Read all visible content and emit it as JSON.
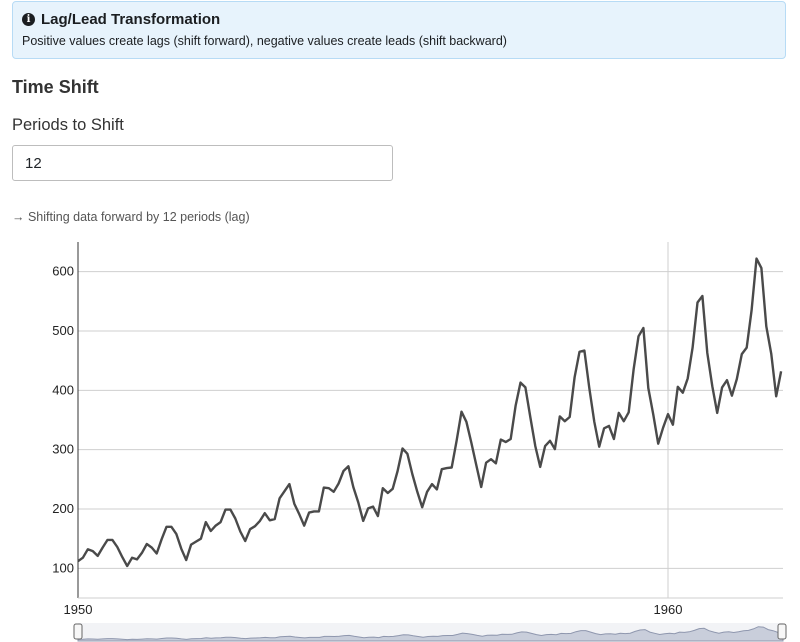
{
  "alert": {
    "icon": "info-icon",
    "title": "Lag/Lead Transformation",
    "text": "Positive values create lags (shift forward), negative values create leads (shift backward)"
  },
  "section_title": "Time Shift",
  "shift": {
    "label": "Periods to Shift",
    "value": "12"
  },
  "hint": "→ Shifting data forward by 12 periods (lag)",
  "chart_data": {
    "type": "line",
    "title": "",
    "xlabel": "",
    "ylabel": "",
    "x_start": "1950-01",
    "frequency": "monthly",
    "x_tick_labels": [
      "1950",
      "1960"
    ],
    "y_ticks": [
      100,
      200,
      300,
      400,
      500,
      600
    ],
    "ylim": [
      50,
      650
    ],
    "grid": true,
    "navigator": true,
    "series": [
      {
        "name": "",
        "color": "#4a4a4a",
        "values": [
          112,
          118,
          132,
          129,
          121,
          135,
          148,
          148,
          136,
          119,
          104,
          118,
          115,
          126,
          141,
          135,
          125,
          149,
          170,
          170,
          158,
          133,
          114,
          140,
          145,
          150,
          178,
          163,
          172,
          178,
          199,
          199,
          184,
          162,
          146,
          166,
          171,
          180,
          193,
          181,
          183,
          218,
          230,
          242,
          209,
          191,
          172,
          194,
          196,
          196,
          236,
          235,
          229,
          243,
          264,
          272,
          237,
          211,
          180,
          201,
          204,
          188,
          235,
          227,
          234,
          264,
          302,
          293,
          259,
          229,
          203,
          229,
          242,
          233,
          267,
          269,
          270,
          315,
          364,
          347,
          312,
          274,
          237,
          278,
          284,
          277,
          317,
          313,
          318,
          374,
          413,
          405,
          355,
          306,
          271,
          306,
          315,
          301,
          356,
          348,
          355,
          422,
          465,
          467,
          404,
          347,
          305,
          336,
          340,
          318,
          362,
          348,
          363,
          435,
          491,
          505,
          404,
          359,
          310,
          337,
          360,
          342,
          406,
          396,
          420,
          472,
          548,
          559,
          463,
          407,
          362,
          405,
          417,
          391,
          419,
          461,
          472,
          535,
          622,
          606,
          508,
          461,
          390,
          432
        ]
      }
    ]
  }
}
